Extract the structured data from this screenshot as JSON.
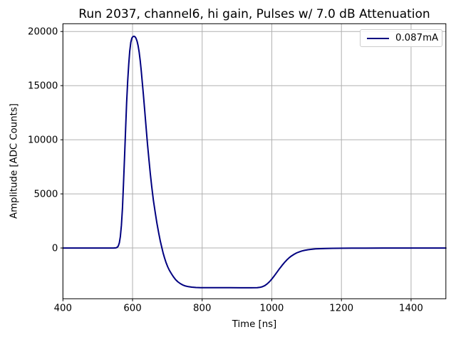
{
  "figure": {
    "background": "#ffffff"
  },
  "chart_data": {
    "type": "line",
    "title": "Run 2037, channel6, hi gain, Pulses w/ 7.0 dB Attenuation",
    "xlabel": "Time [ns]",
    "ylabel": "Amplitude [ADC Counts]",
    "xlim": [
      400,
      1500
    ],
    "ylim": [
      -4690,
      20720
    ],
    "xticks": [
      400,
      600,
      800,
      1000,
      1200,
      1400
    ],
    "yticks": [
      0,
      5000,
      10000,
      15000,
      20000
    ],
    "grid": true,
    "grid_color": "#b0b0b0",
    "spine_color": "#000000",
    "legend": {
      "position": "upper right",
      "entries": [
        {
          "label": "0.087mA",
          "color": "#000080"
        }
      ]
    },
    "series": [
      {
        "name": "0.087mA",
        "color": "#000080",
        "line_width": 2,
        "points": [
          [
            400,
            0
          ],
          [
            425,
            0
          ],
          [
            450,
            0
          ],
          [
            475,
            0
          ],
          [
            500,
            0
          ],
          [
            525,
            0
          ],
          [
            545,
            0
          ],
          [
            552,
            10
          ],
          [
            556,
            60
          ],
          [
            559,
            180
          ],
          [
            562,
            480
          ],
          [
            565,
            1050
          ],
          [
            568,
            2100
          ],
          [
            571,
            3700
          ],
          [
            574,
            5900
          ],
          [
            577,
            8400
          ],
          [
            580,
            11000
          ],
          [
            583,
            13400
          ],
          [
            586,
            15400
          ],
          [
            589,
            17000
          ],
          [
            592,
            18200
          ],
          [
            595,
            19000
          ],
          [
            598,
            19400
          ],
          [
            601,
            19530
          ],
          [
            604,
            19560
          ],
          [
            607,
            19520
          ],
          [
            610,
            19380
          ],
          [
            613,
            19100
          ],
          [
            616,
            18700
          ],
          [
            619,
            18100
          ],
          [
            622,
            17300
          ],
          [
            625,
            16400
          ],
          [
            628,
            15300
          ],
          [
            631,
            14200
          ],
          [
            635,
            12700
          ],
          [
            639,
            11100
          ],
          [
            643,
            9600
          ],
          [
            647,
            8200
          ],
          [
            651,
            6900
          ],
          [
            655,
            5700
          ],
          [
            660,
            4400
          ],
          [
            665,
            3300
          ],
          [
            670,
            2300
          ],
          [
            675,
            1400
          ],
          [
            680,
            600
          ],
          [
            684,
            40
          ],
          [
            688,
            -480
          ],
          [
            692,
            -930
          ],
          [
            696,
            -1320
          ],
          [
            701,
            -1740
          ],
          [
            706,
            -2070
          ],
          [
            712,
            -2400
          ],
          [
            718,
            -2690
          ],
          [
            724,
            -2930
          ],
          [
            730,
            -3120
          ],
          [
            737,
            -3290
          ],
          [
            744,
            -3410
          ],
          [
            752,
            -3510
          ],
          [
            760,
            -3570
          ],
          [
            770,
            -3620
          ],
          [
            782,
            -3650
          ],
          [
            796,
            -3660
          ],
          [
            820,
            -3665
          ],
          [
            850,
            -3670
          ],
          [
            880,
            -3670
          ],
          [
            910,
            -3675
          ],
          [
            940,
            -3675
          ],
          [
            958,
            -3670
          ],
          [
            966,
            -3640
          ],
          [
            973,
            -3580
          ],
          [
            980,
            -3470
          ],
          [
            987,
            -3310
          ],
          [
            994,
            -3090
          ],
          [
            1001,
            -2830
          ],
          [
            1008,
            -2540
          ],
          [
            1015,
            -2230
          ],
          [
            1022,
            -1920
          ],
          [
            1029,
            -1620
          ],
          [
            1036,
            -1350
          ],
          [
            1043,
            -1110
          ],
          [
            1050,
            -900
          ],
          [
            1057,
            -730
          ],
          [
            1064,
            -580
          ],
          [
            1071,
            -460
          ],
          [
            1078,
            -370
          ],
          [
            1086,
            -280
          ],
          [
            1094,
            -220
          ],
          [
            1104,
            -160
          ],
          [
            1114,
            -120
          ],
          [
            1126,
            -85
          ],
          [
            1140,
            -60
          ],
          [
            1155,
            -45
          ],
          [
            1175,
            -30
          ],
          [
            1200,
            -20
          ],
          [
            1230,
            -12
          ],
          [
            1270,
            -7
          ],
          [
            1320,
            -4
          ],
          [
            1380,
            -2
          ],
          [
            1440,
            -1
          ],
          [
            1500,
            0
          ]
        ]
      }
    ]
  }
}
